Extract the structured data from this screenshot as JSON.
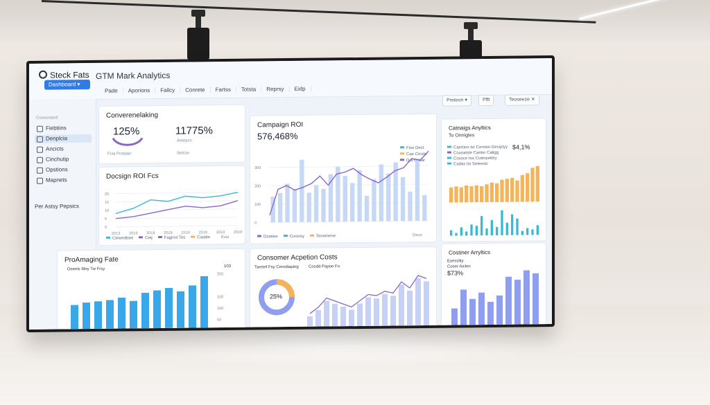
{
  "app": {
    "brand": "Steck Fats",
    "title": "GTM Mark Analytics",
    "dashboard_button": "Dashboard",
    "nav_tabs": [
      "Pade",
      "Aporions",
      "Fallcy",
      "Conrete",
      "Fartss",
      "Totsta",
      "Reprsy",
      "Eidp"
    ],
    "controls": [
      "Preteon",
      "Pfft",
      "Teoseeze"
    ]
  },
  "sidebar": {
    "heading": "Coneerated",
    "items": [
      {
        "label": "Fiebtiins",
        "icon": "home-icon"
      },
      {
        "label": "Denplcia",
        "icon": "grid-icon",
        "active": true
      },
      {
        "label": "Ancicts",
        "icon": "chart-icon"
      },
      {
        "label": "Cinchutip",
        "icon": "users-icon"
      },
      {
        "label": "Opstions",
        "icon": "gear-icon"
      },
      {
        "label": "Mapnets",
        "icon": "map-icon"
      }
    ],
    "footer": "Per Astsy Pepsics"
  },
  "cards": {
    "conversion": {
      "title": "Converenelaking",
      "kpi1_value": "125%",
      "kpi1_label": "Fcia Pcepaic",
      "kpi2_value": "11775%",
      "kpi2_sub": "Aetripcs",
      "kpi2_label": "Selcse"
    },
    "campaign_line": {
      "title": "Docsign ROI Fcs",
      "legend": [
        "Clewedtoet",
        "Cetj",
        "Faginct Tos",
        "Casitte"
      ],
      "control": "Essi"
    },
    "campaign_roi": {
      "title": "Campaign ROI",
      "value": "576,468%",
      "legend": [
        "Fise Dect",
        "Cae Ctcstp",
        "Dut Cesar"
      ],
      "footer_legend": [
        "Dontiee",
        "Curerey",
        "Teonmene"
      ],
      "control": "Dece"
    },
    "campaign_analytics": {
      "title": "Catnaigs Anyltics",
      "subtitle": "To Onnigtes",
      "value": "$4,1%",
      "legend": [
        "Caertion tsr Cerstsn Deciptyy",
        "Cousatste Cantsr Caligg",
        "Cosoce  tos Cuterpettiry",
        "Cadas tst Seteesic"
      ]
    },
    "programming": {
      "title": "ProAmaging Fate",
      "subtitle": "Deeels Mey Tw Frsy",
      "right_value": "103"
    },
    "acquisition": {
      "title": "Consomer Acpetion Costs",
      "subtitle": "Taertef Fsy Cerodiaping",
      "sub2": "Cosdd Papoe Fo",
      "donut_value": "25%"
    },
    "customer": {
      "title": "Costiner Arryltics",
      "subtitle": "Exesslity",
      "sub2": "Coser Aiclen",
      "value": "$73%"
    }
  },
  "chart_data": [
    {
      "type": "line",
      "title": "Docsign ROI Fcs",
      "x": [
        "2013",
        "2019",
        "2019",
        "2019",
        "2019",
        "2019",
        "2013",
        "2019"
      ],
      "series": [
        {
          "name": "Clewedtoet",
          "values": [
            8,
            11,
            16,
            15,
            18,
            17,
            18,
            20
          ]
        },
        {
          "name": "Cetj",
          "values": [
            5,
            6,
            8,
            10,
            12,
            11,
            12,
            15
          ]
        }
      ],
      "ylim": [
        0,
        25
      ]
    },
    {
      "type": "bar",
      "title": "Campaign ROI",
      "bars": [
        140,
        160,
        210,
        180,
        340,
        160,
        200,
        180,
        260,
        300,
        250,
        210,
        280,
        140,
        230,
        310,
        260,
        320,
        240,
        160,
        340,
        140
      ],
      "line": [
        40,
        180,
        200,
        175,
        190,
        210,
        250,
        200,
        260,
        270,
        290,
        255,
        230,
        210,
        240,
        275,
        290,
        340,
        330,
        380
      ],
      "ylim": [
        0,
        400
      ]
    },
    {
      "type": "bar",
      "title": "Catnaigs Anyltics",
      "values": [
        17,
        18,
        17,
        19,
        18,
        19,
        18,
        20,
        22,
        21,
        25,
        26,
        27,
        24,
        30,
        32,
        38,
        40
      ],
      "secondary": [
        4,
        2,
        6,
        3,
        8,
        7,
        14,
        5,
        11,
        6,
        18,
        9,
        15,
        12,
        3,
        5,
        4,
        7
      ],
      "ylim": [
        0,
        45
      ]
    },
    {
      "type": "bar",
      "title": "ProAmaging Fate",
      "values": [
        120,
        130,
        135,
        140,
        150,
        135,
        170,
        180,
        190,
        175,
        200,
        240
      ],
      "ylim": [
        0,
        260
      ]
    },
    {
      "type": "pie",
      "title": "Consomer Acpetion Costs",
      "values": [
        25,
        75
      ],
      "labels": [
        "25%",
        ""
      ]
    },
    {
      "type": "bar",
      "title": "Consomer Acpetion Costs",
      "values": [
        20,
        30,
        45,
        40,
        35,
        30,
        40,
        50,
        48,
        55,
        52,
        70,
        60,
        80,
        75
      ],
      "ylim": [
        0,
        90
      ]
    },
    {
      "type": "bar",
      "title": "Costiner Arryltics",
      "values": [
        30,
        60,
        45,
        55,
        40,
        50,
        80,
        75,
        90,
        85
      ],
      "ylim": [
        0,
        100
      ]
    }
  ],
  "colors": {
    "accent": "#2f7ce8",
    "bar_blue": "#c7d8f5",
    "line_purple": "#8a66c9",
    "teal": "#3bb8d4",
    "orange": "#f4b45a",
    "cyan_bar": "#3aa8e8",
    "indigo_bar": "#8f9ef0"
  }
}
